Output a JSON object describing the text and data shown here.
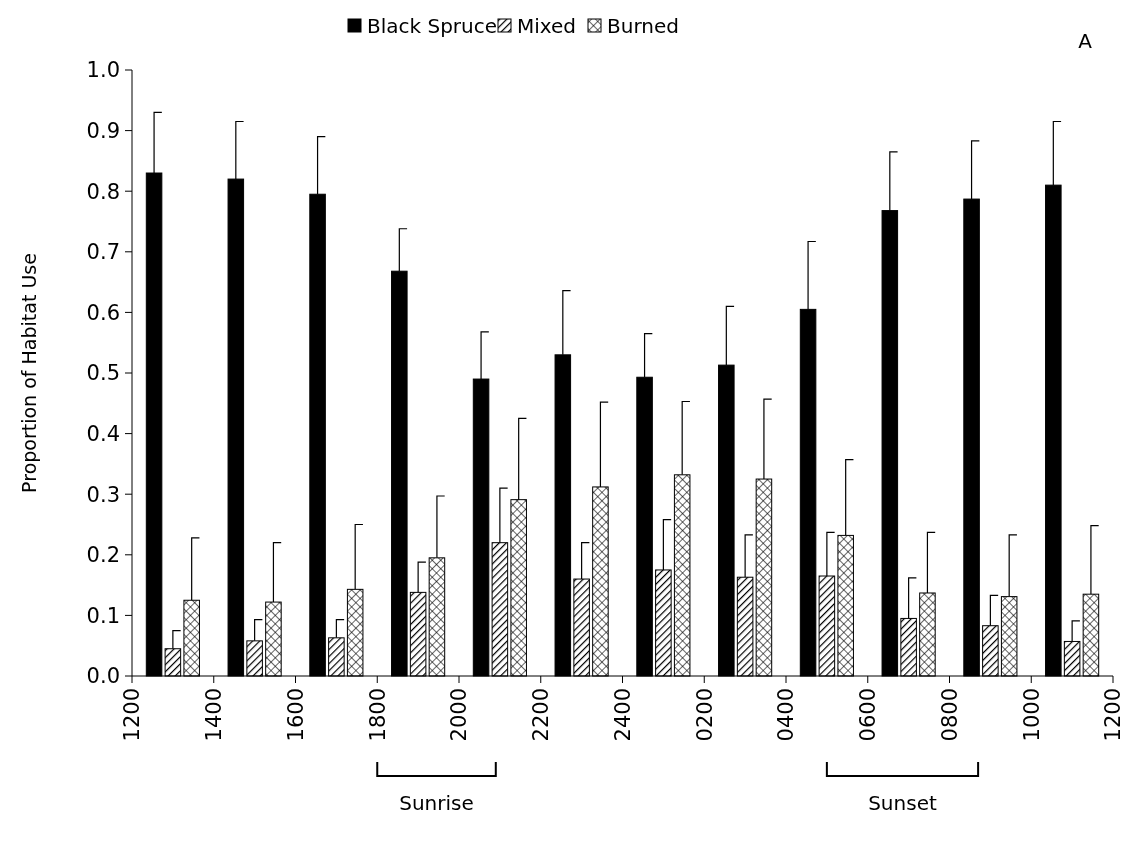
{
  "chart_data": {
    "type": "bar",
    "ylabel": "Proportion of Habitat Use",
    "categories": [
      "1200",
      null,
      "1400",
      null,
      "1600",
      null,
      "1800",
      null,
      "2000",
      null,
      "2200",
      null,
      "2400",
      null,
      "0200",
      null,
      "0400",
      null,
      "0600",
      null,
      "0800",
      null,
      "1000",
      null,
      "1200"
    ],
    "ylim": [
      0,
      1
    ],
    "yticks": [
      {
        "value": 0,
        "label": "0.0"
      },
      0.1,
      0.2,
      0.3,
      0.4,
      0.5,
      0.6,
      0.7,
      0.8,
      0.9,
      {
        "value": 1,
        "label": "1.0"
      }
    ],
    "series": [
      {
        "name": "Black Spruce",
        "color": "#000000",
        "values": [
          null,
          0.83,
          null,
          0.82,
          null,
          0.795,
          null,
          0.668,
          null,
          0.49,
          null,
          0.53,
          null,
          0.493,
          null,
          0.513,
          null,
          0.605,
          null,
          0.768,
          null,
          0.787,
          null,
          0.81,
          null
        ],
        "errors": [
          null,
          [
            0.83,
            0.93
          ],
          null,
          [
            0.82,
            0.915
          ],
          null,
          [
            0.795,
            0.89
          ],
          null,
          [
            0.668,
            0.738
          ],
          null,
          [
            0.49,
            0.568
          ],
          null,
          [
            0.53,
            0.636
          ],
          null,
          [
            0.493,
            0.565
          ],
          null,
          [
            0.513,
            0.61
          ],
          null,
          [
            0.605,
            0.717
          ],
          null,
          [
            0.768,
            0.865
          ],
          null,
          [
            0.787,
            0.883
          ],
          null,
          [
            0.81,
            0.915
          ],
          null
        ]
      },
      {
        "name": "Mixed",
        "color": "#000000",
        "values": [
          null,
          0.045,
          null,
          0.058,
          null,
          0.063,
          null,
          0.138,
          null,
          0.22,
          null,
          0.16,
          null,
          0.175,
          null,
          0.163,
          null,
          0.165,
          null,
          0.095,
          null,
          0.083,
          null,
          0.057,
          null
        ],
        "errors": [
          null,
          [
            0.045,
            0.075
          ],
          null,
          [
            0.058,
            0.093
          ],
          null,
          [
            0.063,
            0.093
          ],
          null,
          [
            0.138,
            0.188
          ],
          null,
          [
            0.22,
            0.31
          ],
          null,
          [
            0.16,
            0.22
          ],
          null,
          [
            0.175,
            0.258
          ],
          null,
          [
            0.163,
            0.233
          ],
          null,
          [
            0.165,
            0.237
          ],
          null,
          [
            0.095,
            0.162
          ],
          null,
          [
            0.083,
            0.133
          ],
          null,
          [
            0.057,
            0.091
          ],
          null
        ]
      },
      {
        "name": "Burned",
        "color": "#000000",
        "values": [
          null,
          0.125,
          null,
          0.122,
          null,
          0.143,
          null,
          0.195,
          null,
          0.291,
          null,
          0.312,
          null,
          0.332,
          null,
          0.325,
          null,
          0.232,
          null,
          0.137,
          null,
          0.131,
          null,
          0.135,
          null
        ],
        "errors": [
          null,
          [
            0.125,
            0.228
          ],
          null,
          [
            0.122,
            0.22
          ],
          null,
          [
            0.143,
            0.25
          ],
          null,
          [
            0.195,
            0.297
          ],
          null,
          [
            0.291,
            0.425
          ],
          null,
          [
            0.312,
            0.452
          ],
          null,
          [
            0.332,
            0.453
          ],
          null,
          [
            0.325,
            0.457
          ],
          null,
          [
            0.232,
            0.357
          ],
          null,
          [
            0.137,
            0.237
          ],
          null,
          [
            0.131,
            0.233
          ],
          null,
          [
            0.135,
            0.248
          ],
          null
        ]
      }
    ],
    "annotations": [
      "A",
      "Sunrise",
      "Sunset"
    ],
    "legend": "top",
    "grid": false
  }
}
